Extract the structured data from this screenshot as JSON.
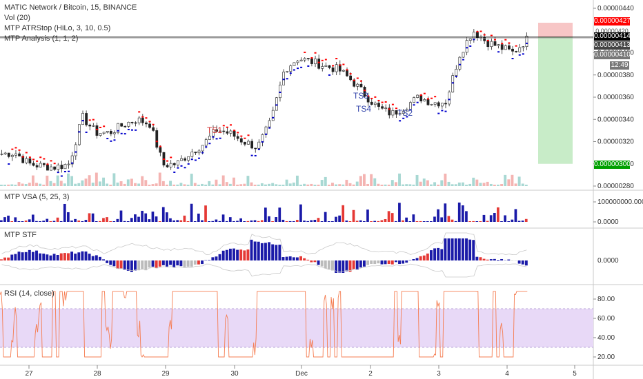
{
  "header": {
    "title": "MATIC Network / Bitcoin, 15, BINANCE",
    "indicators": [
      "Vol (20)",
      "MTP ATRStop (HiLo, 3, 10, 0.5)",
      "MTP Analysis (1, 1, 2)"
    ]
  },
  "panes": {
    "vsa": "MTP VSA (5, 25, 3)",
    "stf": "MTP STF",
    "rsi": "RSI (14, close)"
  },
  "price_tags": {
    "stop": "0.00000427",
    "gray": "0.00000420",
    "current": "0.00000414",
    "tag2": "0.00000413",
    "tag3": "0.00000410",
    "timer": "12:49",
    "target": "0.00000300"
  },
  "annotations": [
    "TS1",
    "TS3",
    "TS4",
    "TS2"
  ],
  "colors": {
    "up": "#26a69a",
    "down": "#ef5350",
    "stop_red": "#ff0000",
    "stop_blue": "#0000cc",
    "rsi": "#f57c50",
    "rsi_band": "#e8d9f7",
    "annotation": "#3344aa"
  },
  "chart_data": [
    {
      "type": "candlestick",
      "title": "MATIC Network / Bitcoin, 15, BINANCE",
      "x_ticks": [
        "27",
        "28",
        "29",
        "30",
        "Dec",
        "2",
        "3",
        "4",
        "5"
      ],
      "y_ticks": [
        "0.00000440",
        "0.00000400",
        "0.00000380",
        "0.00000360",
        "0.00000340",
        "0.00000320",
        "0.00000300",
        "0.00000280"
      ],
      "ylim": [
        2.8e-06,
        4.4e-06
      ],
      "series": [
        {
          "values": [
            3.09e-06,
            3.1e-06,
            3e-06,
            2.98e-06,
            2.97e-06,
            3e-06,
            3.42e-06,
            3.28e-06,
            3.28e-06,
            3.35e-06,
            3.4e-06,
            3.36e-06,
            2.99e-06,
            3e-06,
            3.1e-06,
            3.18e-06,
            3.31e-06,
            3.27e-06,
            3.2e-06,
            3.15e-06,
            3.38e-06,
            3.85e-06,
            3.95e-06,
            3.92e-06,
            3.88e-06,
            3.85e-06,
            3.75e-06,
            3.62e-06,
            3.5e-06,
            3.45e-06,
            3.52e-06,
            3.6e-06,
            3.55e-06,
            3.56e-06,
            3.98e-06,
            4.2e-06,
            4.1e-06,
            4.05e-06,
            4e-06,
            4.12e-06
          ]
        }
      ],
      "long_position": {
        "entry": 4.14e-06,
        "stop": 4.27e-06,
        "target": 3e-06
      }
    },
    {
      "type": "bar",
      "title": "MTP VSA (5, 25, 3)",
      "y_ticks": [
        "100000000.0000",
        "0.0000"
      ]
    },
    {
      "type": "bar",
      "title": "MTP STF",
      "y_ticks": [
        "0.0000"
      ]
    },
    {
      "type": "line",
      "title": "RSI (14, close)",
      "y_ticks": [
        "80.00",
        "60.00",
        "40.00",
        "20.00"
      ],
      "ylim": [
        15,
        90
      ],
      "band": [
        30,
        70
      ]
    }
  ]
}
